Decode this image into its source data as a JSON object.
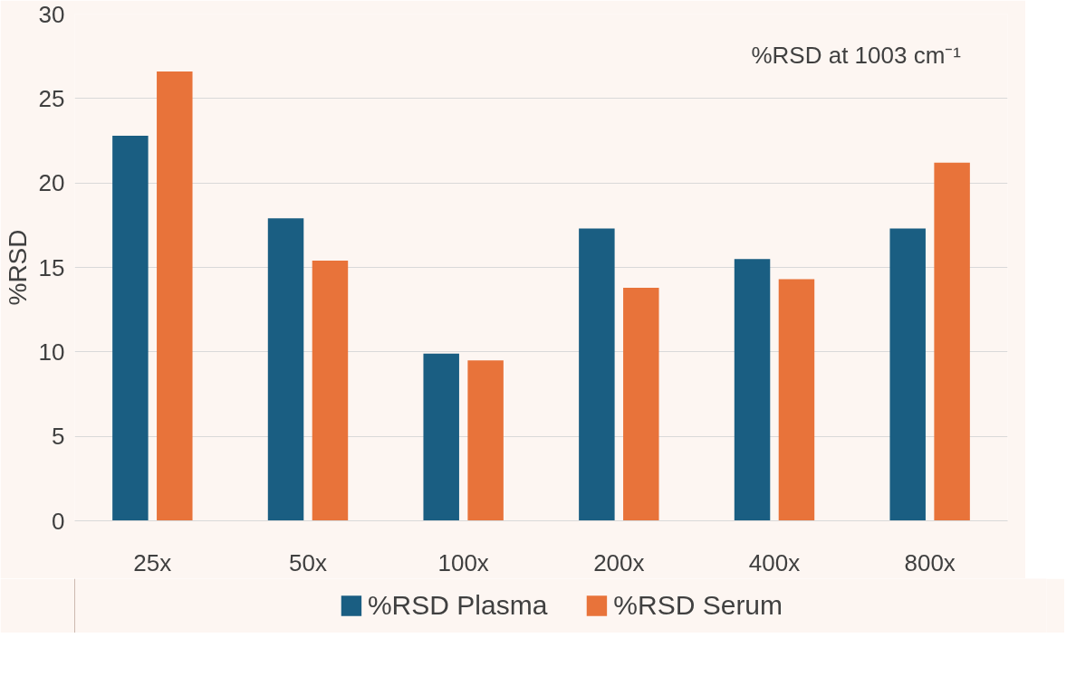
{
  "chart_data": {
    "type": "bar",
    "ylabel": "%RSD",
    "categories": [
      "25x",
      "50x",
      "100x",
      "200x",
      "400x",
      "800x"
    ],
    "series": [
      {
        "name": "%RSD Plasma",
        "color": "#1a5e82",
        "values": [
          22.8,
          17.9,
          9.9,
          17.3,
          15.5,
          17.3
        ]
      },
      {
        "name": "%RSD Serum",
        "color": "#e8733a",
        "values": [
          26.6,
          15.4,
          9.5,
          13.8,
          14.3,
          21.2
        ]
      }
    ],
    "ylim": [
      0,
      30
    ],
    "yticks": [
      0,
      5,
      10,
      15,
      20,
      25,
      30
    ],
    "grid": "y",
    "legend": "bottom",
    "annotations": [
      "%RSD at 1003 cm⁻¹"
    ]
  }
}
